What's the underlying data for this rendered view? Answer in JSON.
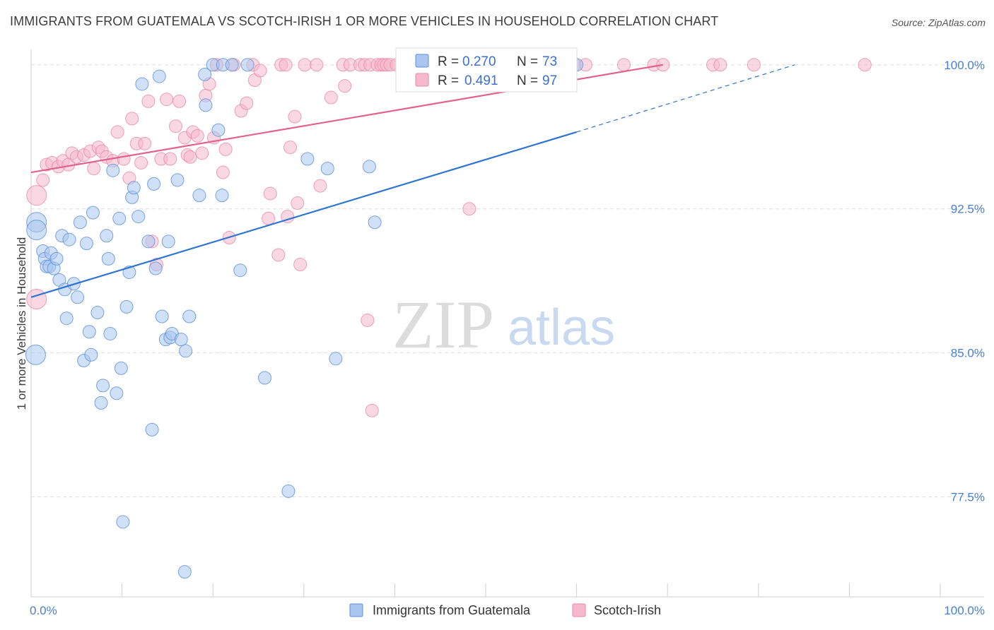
{
  "header": {
    "title": "IMMIGRANTS FROM GUATEMALA VS SCOTCH-IRISH 1 OR MORE VEHICLES IN HOUSEHOLD CORRELATION CHART",
    "source": "Source: ZipAtlas.com"
  },
  "watermark": {
    "zip": "ZIP",
    "atlas": "atlas"
  },
  "colors": {
    "series1_fill": "#a9c6f0",
    "series1_stroke": "#5b8fd8",
    "series1_line": "#2f74d0",
    "series2_fill": "#f5b8cc",
    "series2_stroke": "#e88aa8",
    "series2_line": "#e0628d",
    "tick_text": "#4a7fd0",
    "grid": "#dddddd"
  },
  "chart_data": {
    "type": "scatter",
    "xlabel": "",
    "ylabel": "1 or more Vehicles in Household",
    "xlim": [
      0,
      100
    ],
    "ylim": [
      72.3,
      100.8
    ],
    "x_tick_labels": [
      {
        "value": 0,
        "label": "0.0%"
      },
      {
        "value": 100,
        "label": "100.0%"
      }
    ],
    "y_tick_labels": [
      {
        "value": 100.0,
        "label": "100.0%"
      },
      {
        "value": 92.5,
        "label": "92.5%"
      },
      {
        "value": 85.0,
        "label": "85.0%"
      },
      {
        "value": 77.5,
        "label": "77.5%"
      }
    ],
    "grid": true,
    "legend_position": "bottom-center",
    "stats": [
      {
        "r_label": "R =",
        "r_value": "0.270",
        "n_label": "N =",
        "n_value": "73"
      },
      {
        "r_label": "R =",
        "r_value": "0.491",
        "n_label": "N =",
        "n_value": "97"
      }
    ],
    "series": [
      {
        "name": "Immigrants from Guatemala",
        "trend": {
          "x1": 0,
          "y1": 87.9,
          "x2": 60,
          "y2": 96.5,
          "dash_to_x": 84,
          "dash_to_y": 100.0
        },
        "points": [
          [
            0.6,
            91.8
          ],
          [
            0.6,
            91.4
          ],
          [
            0.5,
            84.9
          ],
          [
            1.3,
            90.3
          ],
          [
            1.5,
            89.9
          ],
          [
            1.7,
            89.5
          ],
          [
            2.0,
            89.5
          ],
          [
            2.2,
            90.2
          ],
          [
            2.5,
            89.4
          ],
          [
            2.8,
            89.9
          ],
          [
            3.1,
            88.8
          ],
          [
            3.4,
            91.1
          ],
          [
            3.7,
            88.3
          ],
          [
            3.9,
            86.8
          ],
          [
            4.2,
            90.9
          ],
          [
            4.7,
            88.6
          ],
          [
            5.1,
            87.9
          ],
          [
            5.4,
            91.8
          ],
          [
            5.8,
            84.6
          ],
          [
            6.1,
            90.7
          ],
          [
            6.4,
            86.1
          ],
          [
            6.6,
            84.9
          ],
          [
            6.8,
            92.3
          ],
          [
            7.3,
            87.1
          ],
          [
            7.7,
            82.4
          ],
          [
            7.9,
            83.3
          ],
          [
            8.3,
            91.1
          ],
          [
            8.5,
            89.9
          ],
          [
            8.7,
            86.0
          ],
          [
            9.0,
            94.5
          ],
          [
            9.4,
            82.9
          ],
          [
            9.7,
            92.0
          ],
          [
            9.9,
            84.2
          ],
          [
            10.1,
            76.2
          ],
          [
            10.5,
            87.4
          ],
          [
            10.8,
            89.2
          ],
          [
            11.1,
            93.1
          ],
          [
            11.3,
            93.6
          ],
          [
            11.8,
            92.1
          ],
          [
            12.2,
            99.0
          ],
          [
            12.9,
            90.8
          ],
          [
            13.3,
            81.0
          ],
          [
            13.5,
            93.8
          ],
          [
            13.7,
            89.4
          ],
          [
            14.1,
            99.4
          ],
          [
            14.4,
            86.9
          ],
          [
            14.8,
            85.7
          ],
          [
            15.1,
            90.8
          ],
          [
            15.3,
            85.8
          ],
          [
            15.5,
            86.0
          ],
          [
            16.1,
            94.0
          ],
          [
            16.5,
            85.7
          ],
          [
            16.9,
            73.6
          ],
          [
            17.0,
            85.1
          ],
          [
            17.4,
            86.9
          ],
          [
            18.5,
            93.2
          ],
          [
            19.1,
            99.5
          ],
          [
            19.2,
            97.9
          ],
          [
            20.0,
            100.0
          ],
          [
            20.6,
            96.6
          ],
          [
            21.0,
            93.2
          ],
          [
            21.1,
            100.0
          ],
          [
            22.1,
            100.0
          ],
          [
            23.0,
            89.3
          ],
          [
            23.8,
            100.0
          ],
          [
            25.7,
            83.7
          ],
          [
            28.3,
            77.8
          ],
          [
            30.4,
            95.1
          ],
          [
            32.6,
            94.6
          ],
          [
            33.5,
            84.7
          ],
          [
            37.2,
            94.7
          ],
          [
            37.8,
            91.8
          ],
          [
            60.0,
            100.0
          ]
        ]
      },
      {
        "name": "Scotch-Irish",
        "trend": {
          "x1": 0,
          "y1": 94.4,
          "x2": 69.5,
          "y2": 100.0
        },
        "points": [
          [
            0.6,
            93.2
          ],
          [
            0.6,
            87.8
          ],
          [
            1.3,
            94.0
          ],
          [
            1.7,
            94.8
          ],
          [
            2.3,
            94.9
          ],
          [
            3.0,
            94.7
          ],
          [
            3.5,
            95.0
          ],
          [
            4.1,
            94.8
          ],
          [
            4.5,
            95.4
          ],
          [
            5.0,
            95.2
          ],
          [
            5.8,
            95.3
          ],
          [
            6.5,
            95.5
          ],
          [
            6.9,
            94.6
          ],
          [
            7.4,
            95.7
          ],
          [
            7.8,
            95.5
          ],
          [
            8.3,
            95.2
          ],
          [
            9.0,
            95.0
          ],
          [
            9.5,
            96.5
          ],
          [
            10.2,
            95.1
          ],
          [
            10.8,
            94.1
          ],
          [
            11.1,
            97.2
          ],
          [
            11.6,
            95.9
          ],
          [
            12.1,
            94.9
          ],
          [
            12.5,
            95.9
          ],
          [
            12.9,
            98.1
          ],
          [
            13.3,
            90.8
          ],
          [
            13.8,
            89.6
          ],
          [
            14.3,
            95.1
          ],
          [
            14.9,
            98.2
          ],
          [
            15.3,
            95.1
          ],
          [
            15.9,
            96.8
          ],
          [
            16.3,
            98.1
          ],
          [
            16.9,
            96.2
          ],
          [
            17.2,
            95.3
          ],
          [
            17.5,
            95.2
          ],
          [
            17.8,
            96.5
          ],
          [
            18.3,
            96.3
          ],
          [
            18.8,
            95.4
          ],
          [
            19.2,
            98.4
          ],
          [
            19.6,
            99.0
          ],
          [
            20.1,
            96.2
          ],
          [
            20.4,
            100.0
          ],
          [
            21.1,
            94.4
          ],
          [
            21.4,
            95.6
          ],
          [
            21.8,
            91.0
          ],
          [
            22.3,
            100.0
          ],
          [
            23.1,
            97.6
          ],
          [
            23.7,
            98.0
          ],
          [
            24.4,
            100.0
          ],
          [
            24.6,
            99.2
          ],
          [
            25.2,
            99.7
          ],
          [
            26.1,
            92.0
          ],
          [
            26.3,
            93.3
          ],
          [
            27.2,
            90.1
          ],
          [
            27.5,
            100.0
          ],
          [
            28.0,
            100.0
          ],
          [
            28.2,
            92.1
          ],
          [
            28.5,
            95.7
          ],
          [
            29.0,
            97.3
          ],
          [
            29.3,
            92.8
          ],
          [
            29.6,
            89.6
          ],
          [
            30.1,
            100.0
          ],
          [
            31.4,
            100.0
          ],
          [
            31.8,
            93.7
          ],
          [
            33.0,
            98.3
          ],
          [
            34.3,
            100.0
          ],
          [
            34.5,
            98.9
          ],
          [
            35.1,
            100.0
          ],
          [
            36.2,
            100.0
          ],
          [
            36.7,
            100.0
          ],
          [
            37.0,
            86.7
          ],
          [
            37.3,
            100.0
          ],
          [
            37.5,
            82.0
          ],
          [
            38.1,
            100.0
          ],
          [
            38.5,
            100.0
          ],
          [
            38.8,
            100.0
          ],
          [
            39.1,
            100.0
          ],
          [
            39.5,
            100.0
          ],
          [
            40.2,
            100.0
          ],
          [
            41.2,
            100.0
          ],
          [
            42.6,
            100.0
          ],
          [
            43.0,
            100.0
          ],
          [
            45.1,
            100.0
          ],
          [
            45.5,
            100.0
          ],
          [
            46.8,
            100.0
          ],
          [
            48.2,
            92.5
          ],
          [
            50.1,
            100.0
          ],
          [
            56.1,
            100.0
          ],
          [
            59.8,
            100.0
          ],
          [
            61.0,
            100.0
          ],
          [
            65.2,
            100.0
          ],
          [
            68.5,
            100.0
          ],
          [
            69.5,
            100.0
          ],
          [
            75.0,
            100.0
          ],
          [
            75.8,
            100.0
          ],
          [
            79.5,
            100.0
          ],
          [
            91.7,
            100.0
          ]
        ]
      }
    ]
  }
}
